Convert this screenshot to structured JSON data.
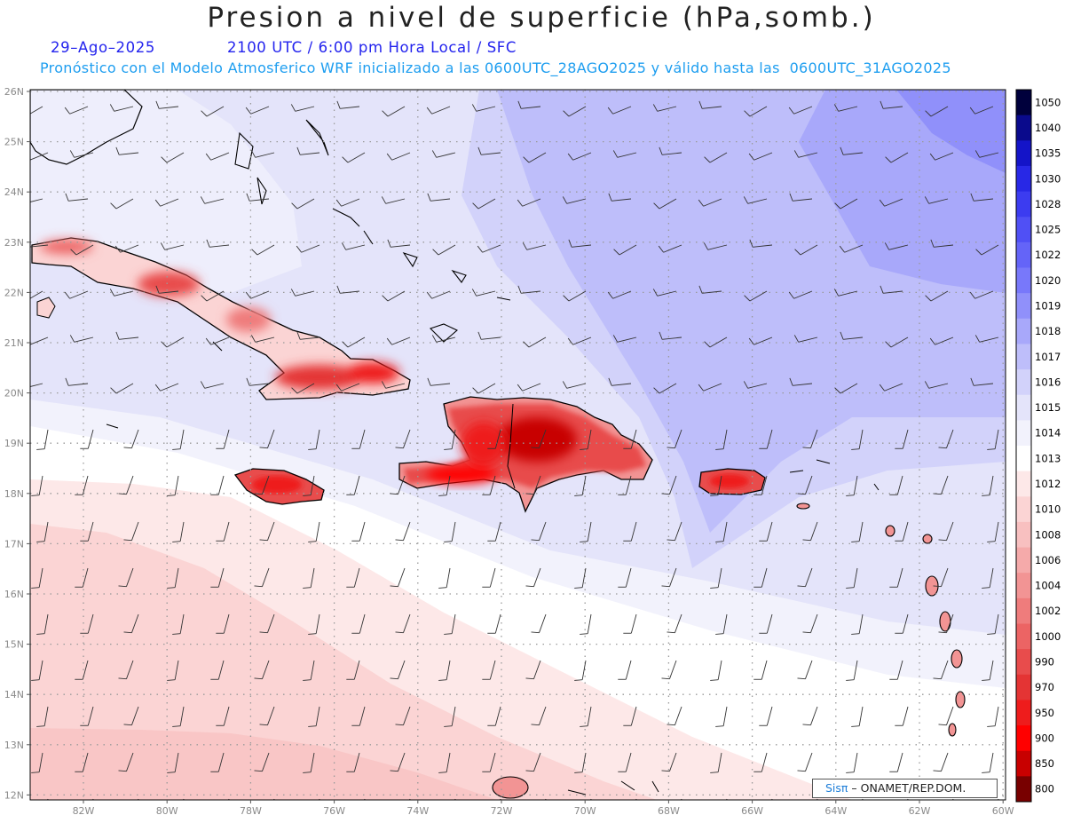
{
  "header": {
    "title": "Presion a nivel de superficie (hPa,somb.)",
    "date": "29–Ago–2025",
    "time": "2100 UTC / 6:00 pm Hora Local / SFC",
    "forecast": "Pronóstico con el Modelo Atmosferico WRF inicializado a las 0600UTC_28AGO2025 y válido hasta las  0600UTC_31AGO2025"
  },
  "axes": {
    "lat_labels": [
      "26N",
      "25N",
      "24N",
      "23N",
      "22N",
      "21N",
      "20N",
      "19N",
      "18N",
      "17N",
      "16N",
      "15N",
      "14N",
      "13N",
      "12N"
    ],
    "lon_labels": [
      "82W",
      "80W",
      "78W",
      "76W",
      "74W",
      "72W",
      "70W",
      "68W",
      "66W",
      "64W",
      "62W",
      "60W"
    ]
  },
  "colorbar": {
    "levels": [
      "1050",
      "1040",
      "1035",
      "1030",
      "1028",
      "1025",
      "1022",
      "1020",
      "1019",
      "1018",
      "1017",
      "1016",
      "1015",
      "1014",
      "1013",
      "1012",
      "1010",
      "1008",
      "1006",
      "1004",
      "1002",
      "1000",
      "990",
      "970",
      "950",
      "900",
      "850",
      "800"
    ],
    "colors": [
      "#00003c",
      "#0a0a8c",
      "#1414c8",
      "#2828e6",
      "#3c3cf0",
      "#5050f5",
      "#6464f8",
      "#7878fa",
      "#9090fa",
      "#a8a8fa",
      "#bebefa",
      "#d2d2fa",
      "#e4e4fa",
      "#f2f2fc",
      "#ffffff",
      "#fde8e8",
      "#fbd4d4",
      "#f8c0c0",
      "#f5aaaa",
      "#f29494",
      "#ef7c7c",
      "#ec6464",
      "#e84c4c",
      "#e43434",
      "#ee1c1c",
      "#ff0000",
      "#c80000",
      "#780000"
    ]
  },
  "credit": {
    "sis": "Sisπ",
    "org": " – ONAMET/REP.DOM."
  },
  "icons": {
    "barbs": "wind-barb-icon"
  }
}
